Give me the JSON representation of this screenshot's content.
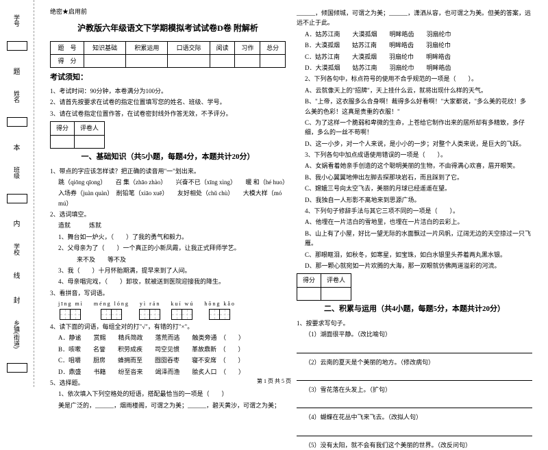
{
  "binding": {
    "labels": [
      "学号",
      "姓名",
      "班级",
      "学校",
      "乡镇(街道)"
    ],
    "marks": [
      "题",
      "本",
      "内",
      "线",
      "封"
    ]
  },
  "header_mark": "绝密★启用前",
  "title": "沪教版六年级语文下学期模拟考试试卷D卷 附解析",
  "score_table": {
    "headers": [
      "题　号",
      "知识基础",
      "积累运用",
      "口语交际",
      "阅读",
      "习作",
      "总分"
    ],
    "row2": "得　分"
  },
  "notice": {
    "title": "考试须知：",
    "items": [
      "1、考试时间：90分钟，本卷满分为100分。",
      "2、请首先按要求在试卷的指定位置填写您的姓名、班级、学号。",
      "3、请在试卷指定位置作答，在试卷密封线外作答无效，不予评分。"
    ]
  },
  "eval": {
    "c1": "得分",
    "c2": "评卷人"
  },
  "section1": {
    "title": "一、基础知识（共5小题，每题4分，本题共计20分）",
    "q1": "1、带点的字应该怎样读？把正确的读音用\"一\"划出来。",
    "q1_lines": [
      "跳（qiōng qīong）　　召 集（zhāo zhào）　　兴奋不已（xīng xìng）　　暖 和（hé huo）",
      "入场券（juàn quàn）　削铅笔（xiāo xuē）　　友好相处（chǔ chù）　　大模大样（mó mú）"
    ],
    "q2": "2、选词填空。",
    "q2_words": "造就　　　炼就",
    "q2_items": [
      "1、舞台如一炉火，（　　）了我的勇气和毅力。",
      "2、父母亲为了（　　）一个真正的小新凤霞，让我正式拜师学艺。",
      "　　　来不及　　等不及",
      "3、我（　　）十月怀胎期满，提早来到了人间。",
      "4、母亲唱完戏，（　　）卸妆，就被送到医院迎接我的降生。"
    ],
    "q3": "3、看拼音，写词语。",
    "q3_pinyin": [
      {
        "py": "jīng mì",
        "n": 2
      },
      {
        "py": "méng lóng",
        "n": 2
      },
      {
        "py": "yì rán",
        "n": 2
      },
      {
        "py": "kuí wú",
        "n": 2
      },
      {
        "py": "hōng kǎo",
        "n": 2
      }
    ],
    "q4": "4、读下面的词语，每组全对的打\"√\"，有错的打\"×\"。",
    "q4_items": [
      "A．静谧　　赏赐　　精兵简政　　落荒而逃　　触类旁通　（　　）",
      "B．咳嗽　　名誉　　积劳成疾　　司空见惯　　革故鼎新　（　　）",
      "C．咀嚼　　厨房　　蜂拥而至　　囫囵吞枣　　寝不安席　（　　）",
      "D．鼎盛　　书籍　　纷至沓来　　竭泽而渔　　脍炙人口　（　　）"
    ],
    "q5": "5、选择题。",
    "q5_1": "1、依次填入下列空格处的短语，搭配最恰当的一项是（　　）",
    "q5_1_text": "美是广泛的，______，烟雨楼阁，可谓之为美；______，碧天黄沙，可谓之为美；"
  },
  "right": {
    "cont": "______，倾国倾城，可谓之为美；______，潇洒从容，也可谓之为美。但美的答案，远远不止于此。",
    "opts1": [
      "A．姑苏江南　　大漠孤烟　　明眸皓齿　　羽扇纶巾",
      "B．大漠孤烟　　姑苏江南　　明眸皓齿　　羽扇纶巾",
      "C．姑苏江南　　大漠孤烟　　羽扇纶巾　　明眸皓齿",
      "D．大漠孤烟　　姑苏江南　　羽扇纶巾　　明眸皓齿"
    ],
    "q5_2": "2、下列各句中，标点符号的使用不合乎规范的一项是（　　）。",
    "q5_2_items": [
      "A、云就像天上的\"招牌\"，天上挂什么云，就将出现什么样的天气。",
      "B、\"上帝，这衣服多么合身啊！裁得多么好看啊！\"大家都说，\"多么美的花纹！多么美的色彩！这真是贵重的衣服！\"",
      "C、为了这样一个脆弱和卑微的生命，上苍给它制作出来的居所却有多精致，多仔细，多么的一丝不苟啊！",
      "D、这一小步，对一个人来说，是小小的一步；对整个人类来说，是巨大的飞跃。"
    ],
    "q5_3": "3、下列各句中加点成语使用错误的一项是（　　）。",
    "q5_3_items": [
      "A、女娲看着她亲手创造的这个聪明美丽的生物，不由得满心欢喜，眉开眼笑。",
      "B、我小心翼翼地伸出左脚去探那块岩石，而且踩到了它。",
      "C、嫦娥三号向太空飞去，美丽的月球已经遥遥在望。",
      "D、我独自一人形影不离地来到思源广场。"
    ],
    "q5_4": "4、下列句子修辞手法与其它三项不同的一项是（　　）。",
    "q5_4_items": [
      "A、他埋在一片洁白的雪地里，也埋在一片洁白的云彩上。",
      "B、山上有了小屋，好比一望无际的水面飘过一片风帆，辽阔无边的天空掠过一只飞雁。",
      "C、那眼眶泪，如秋冬，如寒星，如宝珠，如白水银里头养着两丸黑水银。",
      "D、那一颗心就宛如一片欢腾的大海，那一双眼就仿佛两道溢彩的河流。"
    ],
    "section2_title": "二、积累与运用（共4小题，每题5分，本题共计20分）",
    "q2_1": "1、按要求写句子。",
    "q2_1_items": [
      "（1）湖面很平静。（改比喻句）",
      "（2）云南的夏天是个美丽的地方。（修改病句）",
      "（3）雪花落在头发上。（扩句）",
      "（4）蝴蝶在花丛中飞来飞去。（改拟人句）",
      "（5）没有太阳，就不会有我们这个美丽的世界。（改反问句）"
    ]
  },
  "footer": "第 1 页 共 5 页"
}
